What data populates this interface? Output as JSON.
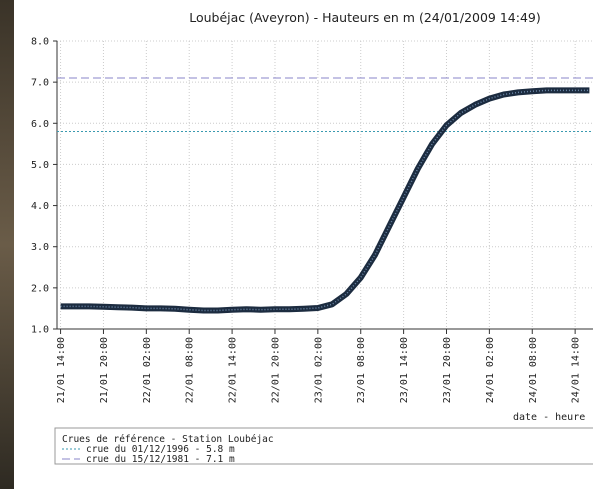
{
  "chart_data": {
    "type": "line",
    "title": "Loubéjac (Aveyron) - Hauteurs en m (24/01/2009 14:49)",
    "x_label": "date - heure",
    "x": [
      0,
      2,
      4,
      6,
      8,
      10,
      12,
      14,
      16,
      18,
      20,
      22,
      24,
      26,
      28,
      30,
      32,
      34,
      36,
      38,
      40,
      42,
      44,
      46,
      48,
      50,
      52,
      54,
      56,
      58,
      60,
      62,
      64,
      66,
      68,
      70,
      72,
      74
    ],
    "series": [
      {
        "color": "#1c2c40",
        "values": [
          1.55,
          1.55,
          1.55,
          1.54,
          1.53,
          1.52,
          1.5,
          1.5,
          1.49,
          1.47,
          1.45,
          1.45,
          1.47,
          1.48,
          1.47,
          1.48,
          1.48,
          1.49,
          1.51,
          1.6,
          1.85,
          2.25,
          2.8,
          3.5,
          4.2,
          4.9,
          5.5,
          5.95,
          6.25,
          6.45,
          6.6,
          6.7,
          6.75,
          6.78,
          6.8,
          6.8,
          6.8,
          6.8
        ]
      }
    ],
    "xlim": [
      -0.5,
      74.5
    ],
    "xticks": [
      {
        "value": 0,
        "label": "21/01 14:00"
      },
      {
        "value": 6,
        "label": "21/01 20:00"
      },
      {
        "value": 12,
        "label": "22/01 02:00"
      },
      {
        "value": 18,
        "label": "22/01 08:00"
      },
      {
        "value": 24,
        "label": "22/01 14:00"
      },
      {
        "value": 30,
        "label": "22/01 20:00"
      },
      {
        "value": 36,
        "label": "23/01 02:00"
      },
      {
        "value": 42,
        "label": "23/01 08:00"
      },
      {
        "value": 48,
        "label": "23/01 14:00"
      },
      {
        "value": 54,
        "label": "23/01 20:00"
      },
      {
        "value": 60,
        "label": "24/01 02:00"
      },
      {
        "value": 66,
        "label": "24/01 08:00"
      },
      {
        "value": 72,
        "label": "24/01 14:00"
      }
    ],
    "ylim": [
      1,
      8
    ],
    "yticks": [
      {
        "value": 1,
        "label": "1.0"
      },
      {
        "value": 2,
        "label": "2.0"
      },
      {
        "value": 3,
        "label": "3.0"
      },
      {
        "value": 4,
        "label": "4.0"
      },
      {
        "value": 5,
        "label": "5.0"
      },
      {
        "value": 6,
        "label": "6.0"
      },
      {
        "value": 7,
        "label": "7.0"
      },
      {
        "value": 8,
        "label": "8.0"
      }
    ],
    "grid": true,
    "legend_title": "Crues de référence - Station Loubéjac",
    "reference_lines": [
      {
        "value": 5.8,
        "label": "crue du 01/12/1996 - 5.8 m",
        "color": "#3a9ab0",
        "dash": "2,2"
      },
      {
        "value": 7.1,
        "label": "crue du 15/12/1981 - 7.1 m",
        "color": "#8a86c8",
        "dash": "8,4"
      }
    ]
  }
}
